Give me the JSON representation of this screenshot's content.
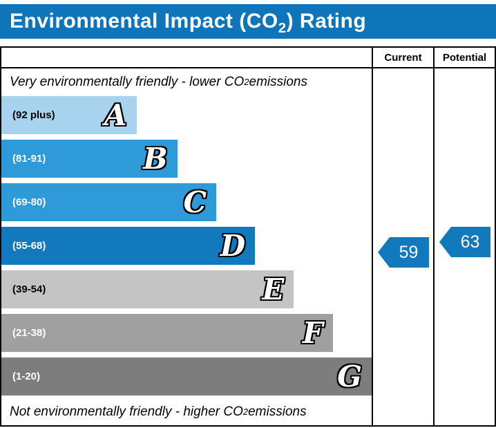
{
  "header": {
    "title_pre": "Environmental Impact (CO",
    "title_sub": "2",
    "title_post": ") Rating",
    "bar_color": "#0f75bb"
  },
  "columns": {
    "current": "Current",
    "potential": "Potential"
  },
  "notes": {
    "top_pre": "Very environmentally friendly - lower CO",
    "top_sub": "2",
    "top_post": " emissions",
    "bottom_pre": "Not environmentally friendly - higher CO",
    "bottom_sub": "2",
    "bottom_post": " emissions"
  },
  "chart_data": {
    "type": "bar",
    "title": "Environmental Impact (CO2) Rating",
    "legend_position": "none",
    "grid": false,
    "bands": [
      {
        "letter": "A",
        "range": "(92 plus)",
        "min": 92,
        "max": 100,
        "color": "#a7d3ee",
        "label_color": "#000000",
        "width_pct": 36.5
      },
      {
        "letter": "B",
        "range": "(81-91)",
        "min": 81,
        "max": 91,
        "color": "#2f9ad8",
        "label_color": "#ffffff",
        "width_pct": 47.5
      },
      {
        "letter": "C",
        "range": "(69-80)",
        "min": 69,
        "max": 80,
        "color": "#2f9ad8",
        "label_color": "#ffffff",
        "width_pct": 58
      },
      {
        "letter": "D",
        "range": "(55-68)",
        "min": 55,
        "max": 68,
        "color": "#1279bd",
        "label_color": "#ffffff",
        "width_pct": 68.5
      },
      {
        "letter": "E",
        "range": "(39-54)",
        "min": 39,
        "max": 54,
        "color": "#c4c4c4",
        "label_color": "#000000",
        "width_pct": 79
      },
      {
        "letter": "F",
        "range": "(21-38)",
        "min": 21,
        "max": 38,
        "color": "#a0a0a0",
        "label_color": "#ffffff",
        "width_pct": 89.5
      },
      {
        "letter": "G",
        "range": "(1-20)",
        "min": 1,
        "max": 20,
        "color": "#7d7d7d",
        "label_color": "#ffffff",
        "width_pct": 100
      }
    ],
    "current": {
      "value": 59,
      "band": "D",
      "color": "#1279bd"
    },
    "potential": {
      "value": 63,
      "band": "D",
      "color": "#1279bd"
    }
  }
}
